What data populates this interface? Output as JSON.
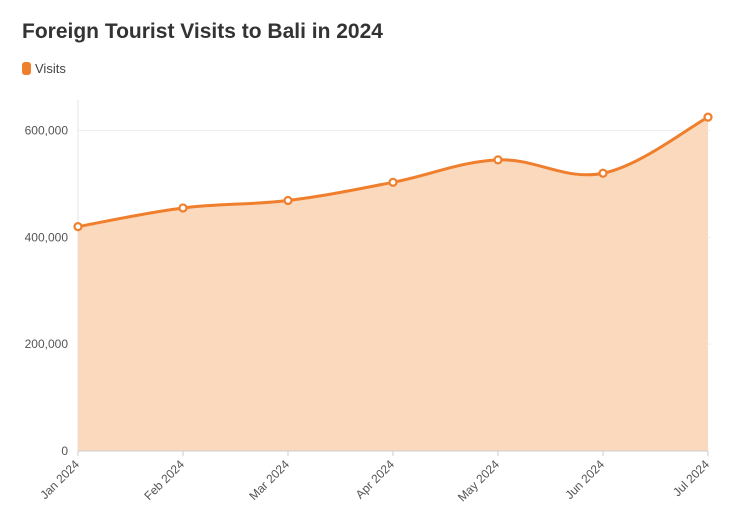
{
  "chart_data": {
    "type": "area",
    "title": "Foreign Tourist Visits to Bali in 2024",
    "legend": {
      "label": "Visits",
      "placement": "top-left"
    },
    "categories": [
      "Jan 2024",
      "Feb 2024",
      "Mar 2024",
      "Apr 2024",
      "May 2024",
      "Jun 2024",
      "Jul 2024"
    ],
    "series": [
      {
        "name": "Visits",
        "values": [
          420000,
          455000,
          469000,
          503000,
          545000,
          520000,
          625000
        ]
      }
    ],
    "ylim": [
      0,
      650000
    ],
    "yticks": [
      0,
      200000,
      400000,
      600000
    ],
    "ytick_labels": [
      "0",
      "200,000",
      "400,000",
      "600,000"
    ],
    "grid": true,
    "colors": {
      "line": "#f07f2d",
      "fill": "#fbd9bd",
      "grid": "#eeeeee"
    }
  }
}
